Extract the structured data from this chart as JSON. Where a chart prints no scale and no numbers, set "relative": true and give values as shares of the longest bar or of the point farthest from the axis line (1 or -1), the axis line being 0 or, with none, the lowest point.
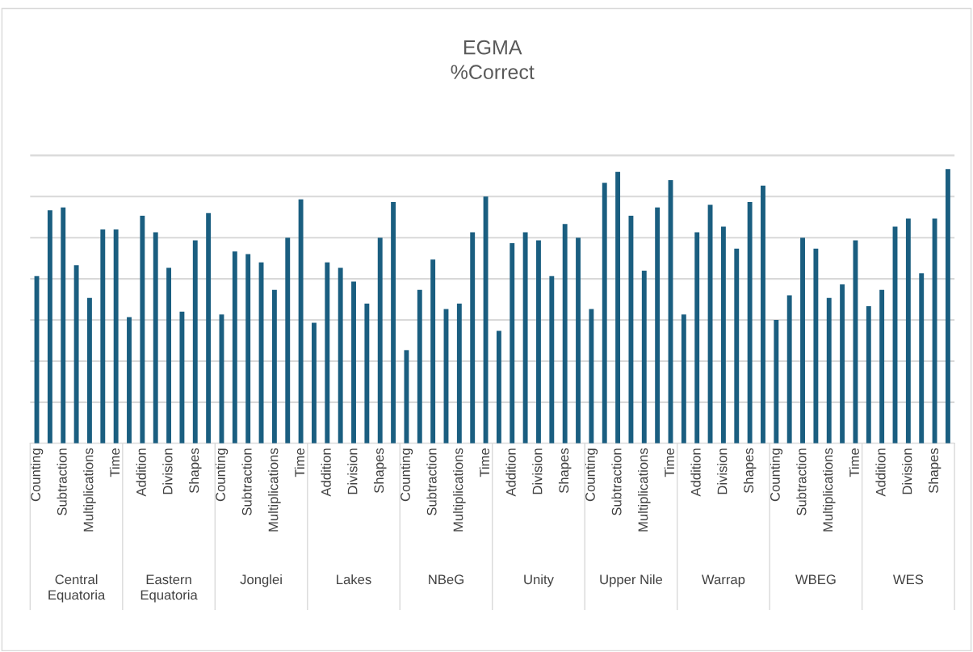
{
  "chart_data": {
    "type": "bar",
    "title": "EGMA\n%Correct",
    "relative": true,
    "grid": "y",
    "color": "#1a5e80",
    "categories": [
      "Counting",
      null,
      "Subtraction",
      null,
      "Multiplications",
      null,
      "Time",
      null,
      "Addition",
      null,
      "Division",
      null,
      "Shapes",
      null,
      "Counting",
      null,
      "Subtraction",
      null,
      "Multiplications",
      null,
      "Time",
      null,
      "Addition",
      null,
      "Division",
      null,
      "Shapes",
      null,
      "Counting",
      null,
      "Subtraction",
      null,
      "Multiplications",
      null,
      "Time",
      null,
      "Addition",
      null,
      "Division",
      null,
      "Shapes",
      null,
      "Counting",
      null,
      "Subtraction",
      null,
      "Multiplications",
      null,
      "Time",
      null,
      "Addition",
      null,
      "Division",
      null,
      "Shapes",
      null,
      "Counting",
      null,
      "Subtraction",
      null,
      "Multiplications",
      null,
      "Time",
      null,
      "Addition",
      null,
      "Division",
      null,
      "Shapes",
      null
    ],
    "values": [
      0.61,
      0.85,
      0.86,
      0.65,
      0.53,
      0.78,
      0.78,
      0.46,
      0.83,
      0.77,
      0.64,
      0.48,
      0.74,
      0.84,
      0.47,
      0.7,
      0.69,
      0.66,
      0.56,
      0.75,
      0.89,
      0.44,
      0.66,
      0.64,
      0.59,
      0.51,
      0.75,
      0.88,
      0.34,
      0.56,
      0.67,
      0.49,
      0.51,
      0.77,
      0.9,
      0.41,
      0.73,
      0.77,
      0.74,
      0.61,
      0.8,
      0.75,
      0.49,
      0.95,
      0.99,
      0.83,
      0.63,
      0.86,
      0.96,
      0.47,
      0.77,
      0.87,
      0.79,
      0.71,
      0.88,
      0.94,
      0.45,
      0.54,
      0.75,
      0.71,
      0.53,
      0.58,
      0.74,
      0.5,
      0.56,
      0.79,
      0.82,
      0.62,
      0.82,
      1.0
    ],
    "annotations": [
      "Central\nEquatoria",
      "Eastern\nEquatoria",
      "Jonglei",
      "Lakes",
      "NBeG",
      "Unity",
      "Upper Nile",
      "Warrap",
      "WBEG",
      "WES"
    ]
  }
}
